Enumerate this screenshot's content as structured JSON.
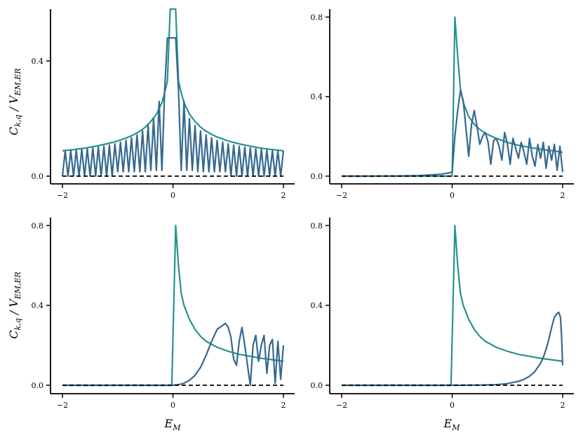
{
  "colors": {
    "envelope": "#26938a",
    "oscillating": "#35688f",
    "baseline": "#000000"
  },
  "labels": {
    "ylabel_main": "C",
    "ylabel_sub": "k,q",
    "ylabel_div": " / V",
    "ylabel_sub2": "EM,ER",
    "xlabel_main": "E",
    "xlabel_sub": "M"
  },
  "chart_data": [
    {
      "type": "line",
      "xlim": [
        -2,
        2
      ],
      "ylim": [
        -0.02,
        0.58
      ],
      "xticks": [
        -2,
        0,
        2
      ],
      "xtick_labels": [
        "−2",
        "0",
        "2"
      ],
      "yticks": [
        0.0,
        0.4
      ],
      "ytick_labels": [
        "0.0",
        "0.4"
      ],
      "ylabel": "C_{k,q} / V_{EM,ER}",
      "xlabel": "",
      "series": [
        {
          "role": "baseline",
          "style": "dashed",
          "x": [
            -2,
            2
          ],
          "y": [
            0,
            0
          ]
        },
        {
          "role": "oscillating",
          "x": [
            -2.0,
            -1.95,
            -1.9,
            -1.85,
            -1.8,
            -1.75,
            -1.7,
            -1.65,
            -1.6,
            -1.55,
            -1.5,
            -1.45,
            -1.4,
            -1.35,
            -1.3,
            -1.25,
            -1.2,
            -1.15,
            -1.1,
            -1.05,
            -1.0,
            -0.95,
            -0.9,
            -0.85,
            -0.8,
            -0.75,
            -0.7,
            -0.65,
            -0.6,
            -0.55,
            -0.5,
            -0.45,
            -0.4,
            -0.35,
            -0.3,
            -0.25,
            -0.2,
            -0.15,
            -0.1,
            -0.05,
            0.0,
            0.05,
            0.1,
            0.15,
            0.2,
            0.25,
            0.3,
            0.35,
            0.4,
            0.45,
            0.5,
            0.55,
            0.6,
            0.65,
            0.7,
            0.75,
            0.8,
            0.85,
            0.9,
            0.95,
            1.0,
            1.05,
            1.1,
            1.15,
            1.2,
            1.25,
            1.3,
            1.35,
            1.4,
            1.45,
            1.5,
            1.55,
            1.6,
            1.65,
            1.7,
            1.75,
            1.8,
            1.85,
            1.9,
            1.95,
            2.0
          ],
          "y": [
            0.0,
            0.088,
            0.0,
            0.089,
            0.0,
            0.091,
            0.0,
            0.093,
            0.0,
            0.095,
            0.0,
            0.098,
            0.0,
            0.101,
            0.0,
            0.104,
            0.0,
            0.108,
            0.0,
            0.112,
            0.015,
            0.118,
            0.015,
            0.124,
            0.015,
            0.133,
            0.015,
            0.143,
            0.015,
            0.157,
            0.015,
            0.176,
            0.02,
            0.2,
            0.02,
            0.26,
            0.02,
            0.3,
            0.48,
            0.48,
            0.48,
            0.48,
            0.3,
            0.02,
            0.26,
            0.02,
            0.2,
            0.02,
            0.176,
            0.015,
            0.157,
            0.015,
            0.143,
            0.015,
            0.133,
            0.015,
            0.124,
            0.015,
            0.118,
            0.015,
            0.112,
            0.0,
            0.108,
            0.0,
            0.104,
            0.0,
            0.101,
            0.0,
            0.098,
            0.0,
            0.095,
            0.0,
            0.093,
            0.0,
            0.091,
            0.0,
            0.089,
            0.0,
            0.088,
            0.0,
            0.088
          ]
        },
        {
          "role": "envelope",
          "x": [
            -2.0,
            -1.8,
            -1.6,
            -1.4,
            -1.2,
            -1.0,
            -0.8,
            -0.7,
            -0.6,
            -0.5,
            -0.4,
            -0.3,
            -0.2,
            -0.15,
            -0.1,
            -0.05,
            0.0,
            0.05,
            0.1,
            0.15,
            0.2,
            0.3,
            0.4,
            0.5,
            0.6,
            0.7,
            0.8,
            1.0,
            1.2,
            1.4,
            1.6,
            1.8,
            2.0
          ],
          "y": [
            0.088,
            0.092,
            0.097,
            0.104,
            0.112,
            0.122,
            0.136,
            0.145,
            0.156,
            0.17,
            0.19,
            0.215,
            0.255,
            0.29,
            0.33,
            0.58,
            0.58,
            0.58,
            0.33,
            0.29,
            0.255,
            0.215,
            0.19,
            0.17,
            0.156,
            0.145,
            0.136,
            0.122,
            0.112,
            0.104,
            0.097,
            0.092,
            0.088
          ]
        }
      ]
    },
    {
      "type": "line",
      "xlim": [
        -2,
        2
      ],
      "ylim": [
        -0.03,
        0.84
      ],
      "xticks": [
        -2,
        0,
        2
      ],
      "xtick_labels": [
        "−2",
        "0",
        "2"
      ],
      "yticks": [
        0.0,
        0.4,
        0.8
      ],
      "ytick_labels": [
        "0.0",
        "0.4",
        "0.8"
      ],
      "xlabel": "",
      "ylabel": "",
      "series": [
        {
          "role": "baseline",
          "style": "dashed",
          "x": [
            -2,
            2
          ],
          "y": [
            0,
            0
          ]
        },
        {
          "role": "oscillating",
          "x": [
            -2.0,
            -1.5,
            -1.0,
            -0.6,
            -0.4,
            -0.2,
            -0.1,
            -0.05,
            0.0,
            0.05,
            0.1,
            0.15,
            0.2,
            0.25,
            0.3,
            0.35,
            0.4,
            0.45,
            0.5,
            0.55,
            0.6,
            0.65,
            0.7,
            0.75,
            0.8,
            0.85,
            0.9,
            0.95,
            1.0,
            1.05,
            1.1,
            1.15,
            1.2,
            1.25,
            1.3,
            1.35,
            1.4,
            1.45,
            1.5,
            1.55,
            1.6,
            1.65,
            1.7,
            1.75,
            1.8,
            1.85,
            1.9,
            1.95,
            2.0
          ],
          "y": [
            0.0,
            0.0,
            0.001,
            0.003,
            0.006,
            0.01,
            0.014,
            0.017,
            0.02,
            0.2,
            0.33,
            0.43,
            0.38,
            0.24,
            0.1,
            0.26,
            0.33,
            0.25,
            0.16,
            0.2,
            0.22,
            0.17,
            0.06,
            0.18,
            0.19,
            0.15,
            0.08,
            0.22,
            0.16,
            0.06,
            0.19,
            0.14,
            0.09,
            0.17,
            0.12,
            0.06,
            0.19,
            0.1,
            0.05,
            0.16,
            0.09,
            0.17,
            0.04,
            0.15,
            0.08,
            0.16,
            0.03,
            0.15,
            0.02
          ]
        },
        {
          "role": "envelope",
          "x": [
            -2.0,
            -1.0,
            -0.4,
            -0.1,
            0.0,
            0.05,
            0.1,
            0.15,
            0.2,
            0.3,
            0.4,
            0.5,
            0.6,
            0.8,
            1.0,
            1.2,
            1.4,
            1.6,
            1.8,
            2.0
          ],
          "y": [
            0.0,
            0.0,
            0.0,
            0.0,
            0.0,
            0.8,
            0.6,
            0.44,
            0.37,
            0.3,
            0.26,
            0.235,
            0.215,
            0.19,
            0.17,
            0.155,
            0.145,
            0.135,
            0.128,
            0.12
          ]
        }
      ]
    },
    {
      "type": "line",
      "xlim": [
        -2,
        2
      ],
      "ylim": [
        -0.03,
        0.84
      ],
      "xticks": [
        -2,
        0,
        2
      ],
      "xtick_labels": [
        "−2",
        "0",
        "2"
      ],
      "yticks": [
        0.0,
        0.4,
        0.8
      ],
      "ytick_labels": [
        "0.0",
        "0.4",
        "0.8"
      ],
      "ylabel": "C_{k,q} / V_{EM,ER}",
      "xlabel": "E_M",
      "series": [
        {
          "role": "baseline",
          "style": "dashed",
          "x": [
            -2,
            2
          ],
          "y": [
            0,
            0
          ]
        },
        {
          "role": "oscillating",
          "x": [
            -2.0,
            -1.0,
            0.0,
            0.1,
            0.2,
            0.3,
            0.4,
            0.5,
            0.6,
            0.7,
            0.8,
            0.9,
            0.95,
            1.0,
            1.05,
            1.1,
            1.15,
            1.2,
            1.25,
            1.3,
            1.35,
            1.4,
            1.45,
            1.5,
            1.55,
            1.6,
            1.65,
            1.7,
            1.75,
            1.8,
            1.85,
            1.9,
            1.95,
            2.0
          ],
          "y": [
            0.0,
            0.0,
            0.0,
            0.003,
            0.01,
            0.025,
            0.05,
            0.09,
            0.15,
            0.22,
            0.28,
            0.3,
            0.31,
            0.29,
            0.24,
            0.13,
            0.1,
            0.22,
            0.29,
            0.2,
            0.1,
            0.0,
            0.2,
            0.25,
            0.12,
            0.2,
            0.25,
            0.06,
            0.2,
            0.23,
            0.01,
            0.22,
            0.03,
            0.2
          ]
        },
        {
          "role": "envelope",
          "x": [
            -2.0,
            -1.0,
            -0.4,
            -0.1,
            -0.02,
            0.05,
            0.1,
            0.15,
            0.2,
            0.3,
            0.4,
            0.5,
            0.6,
            0.8,
            1.0,
            1.2,
            1.4,
            1.6,
            1.8,
            2.0
          ],
          "y": [
            0.0,
            0.0,
            0.0,
            0.0,
            0.0,
            0.8,
            0.6,
            0.46,
            0.4,
            0.33,
            0.28,
            0.245,
            0.22,
            0.19,
            0.17,
            0.155,
            0.145,
            0.135,
            0.128,
            0.12
          ]
        }
      ]
    },
    {
      "type": "line",
      "xlim": [
        -2,
        2
      ],
      "ylim": [
        -0.03,
        0.84
      ],
      "xticks": [
        -2,
        0,
        2
      ],
      "xtick_labels": [
        "−2",
        "0",
        "2"
      ],
      "yticks": [
        0.0,
        0.4,
        0.8
      ],
      "ytick_labels": [
        "0.0",
        "0.4",
        "0.8"
      ],
      "ylabel": "",
      "xlabel": "E_M",
      "series": [
        {
          "role": "baseline",
          "style": "dashed",
          "x": [
            -2,
            2
          ],
          "y": [
            0,
            0
          ]
        },
        {
          "role": "oscillating",
          "x": [
            -2.0,
            -1.0,
            0.0,
            0.5,
            0.8,
            1.0,
            1.2,
            1.3,
            1.4,
            1.5,
            1.6,
            1.65,
            1.7,
            1.75,
            1.8,
            1.85,
            1.9,
            1.93,
            1.96,
            1.98,
            2.0
          ],
          "y": [
            0.0,
            0.0,
            0.0,
            0.001,
            0.003,
            0.008,
            0.02,
            0.03,
            0.045,
            0.07,
            0.11,
            0.14,
            0.18,
            0.23,
            0.29,
            0.34,
            0.36,
            0.365,
            0.34,
            0.25,
            0.1
          ]
        },
        {
          "role": "envelope",
          "x": [
            -2.0,
            -1.0,
            -0.4,
            -0.1,
            -0.02,
            0.05,
            0.1,
            0.15,
            0.2,
            0.3,
            0.4,
            0.5,
            0.6,
            0.8,
            1.0,
            1.2,
            1.4,
            1.6,
            1.8,
            2.0
          ],
          "y": [
            0.0,
            0.0,
            0.0,
            0.0,
            0.0,
            0.8,
            0.6,
            0.46,
            0.4,
            0.33,
            0.28,
            0.245,
            0.22,
            0.19,
            0.17,
            0.155,
            0.145,
            0.135,
            0.128,
            0.12
          ]
        }
      ]
    }
  ]
}
